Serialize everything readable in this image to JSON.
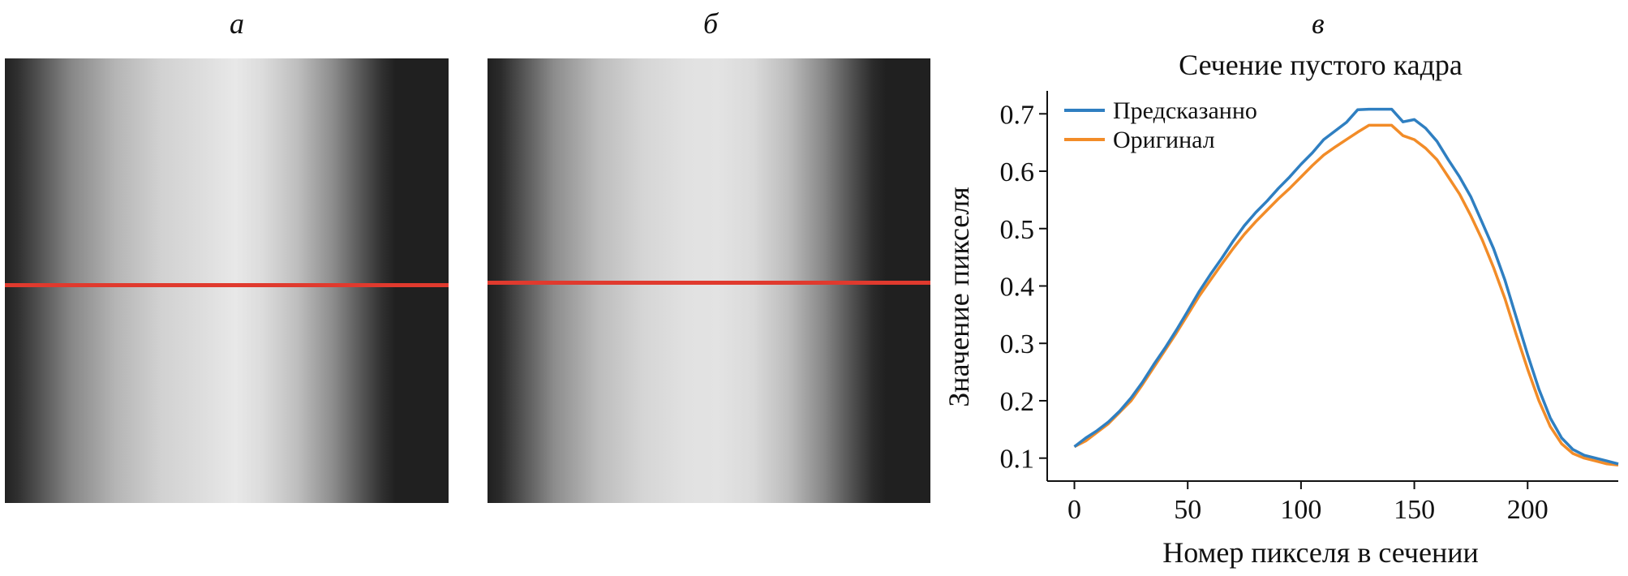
{
  "panels": {
    "a_label": "а",
    "b_label": "б",
    "c_label": "в"
  },
  "frames": {
    "line_color": "#e03a2e",
    "background": "#15171b",
    "a": {
      "profile": [
        [
          0,
          0.06
        ],
        [
          0.03,
          0.12
        ],
        [
          0.08,
          0.28
        ],
        [
          0.15,
          0.5
        ],
        [
          0.25,
          0.7
        ],
        [
          0.35,
          0.82
        ],
        [
          0.45,
          0.88
        ],
        [
          0.52,
          0.92
        ],
        [
          0.58,
          0.87
        ],
        [
          0.66,
          0.74
        ],
        [
          0.74,
          0.52
        ],
        [
          0.8,
          0.3
        ],
        [
          0.85,
          0.12
        ],
        [
          0.88,
          0.05
        ],
        [
          1,
          0.05
        ]
      ]
    },
    "b": {
      "profile": [
        [
          0,
          0.05
        ],
        [
          0.03,
          0.1
        ],
        [
          0.08,
          0.28
        ],
        [
          0.15,
          0.52
        ],
        [
          0.25,
          0.73
        ],
        [
          0.35,
          0.84
        ],
        [
          0.45,
          0.89
        ],
        [
          0.52,
          0.9
        ],
        [
          0.6,
          0.86
        ],
        [
          0.68,
          0.73
        ],
        [
          0.76,
          0.5
        ],
        [
          0.83,
          0.24
        ],
        [
          0.87,
          0.1
        ],
        [
          0.9,
          0.05
        ],
        [
          1,
          0.05
        ]
      ]
    }
  },
  "chart_data": {
    "type": "line",
    "title": "Сечение пустого кадра",
    "xlabel": "Номер пикселя в сечении",
    "ylabel": "Значение пикселя",
    "xlim": [
      -12,
      240
    ],
    "ylim": [
      0.06,
      0.74
    ],
    "xticks": [
      0,
      50,
      100,
      150,
      200
    ],
    "xtick_labels": [
      "0",
      "50",
      "100",
      "150",
      "200"
    ],
    "yticks": [
      0.1,
      0.2,
      0.3,
      0.4,
      0.5,
      0.6,
      0.7
    ],
    "ytick_labels": [
      "0.1",
      "0.2",
      "0.3",
      "0.4",
      "0.5",
      "0.6",
      "0.7"
    ],
    "legend_position": "top-left",
    "grid": false,
    "series": [
      {
        "name": "Предсказанно",
        "color": "#2f7fc1",
        "x": [
          0,
          5,
          10,
          15,
          20,
          25,
          30,
          35,
          40,
          45,
          50,
          55,
          60,
          65,
          70,
          75,
          80,
          85,
          90,
          95,
          100,
          105,
          110,
          115,
          120,
          125,
          130,
          135,
          140,
          145,
          150,
          155,
          160,
          165,
          170,
          175,
          180,
          185,
          190,
          195,
          200,
          205,
          210,
          215,
          220,
          225,
          230,
          235,
          240
        ],
        "y": [
          0.12,
          0.135,
          0.148,
          0.163,
          0.182,
          0.205,
          0.232,
          0.263,
          0.292,
          0.323,
          0.356,
          0.39,
          0.42,
          0.448,
          0.478,
          0.505,
          0.528,
          0.548,
          0.57,
          0.59,
          0.612,
          0.632,
          0.655,
          0.67,
          0.685,
          0.707,
          0.708,
          0.708,
          0.708,
          0.686,
          0.69,
          0.675,
          0.652,
          0.62,
          0.59,
          0.555,
          0.51,
          0.465,
          0.41,
          0.345,
          0.28,
          0.22,
          0.17,
          0.135,
          0.115,
          0.105,
          0.1,
          0.095,
          0.09
        ]
      },
      {
        "name": "Оригинал",
        "color": "#f28c28",
        "x": [
          0,
          5,
          10,
          15,
          20,
          25,
          30,
          35,
          40,
          45,
          50,
          55,
          60,
          65,
          70,
          75,
          80,
          85,
          90,
          95,
          100,
          105,
          110,
          115,
          120,
          125,
          130,
          135,
          140,
          145,
          150,
          155,
          160,
          165,
          170,
          175,
          180,
          185,
          190,
          195,
          200,
          205,
          210,
          215,
          220,
          225,
          230,
          235,
          240
        ],
        "y": [
          0.12,
          0.13,
          0.145,
          0.16,
          0.18,
          0.2,
          0.228,
          0.258,
          0.288,
          0.318,
          0.35,
          0.382,
          0.41,
          0.438,
          0.465,
          0.49,
          0.512,
          0.532,
          0.552,
          0.57,
          0.59,
          0.61,
          0.628,
          0.642,
          0.655,
          0.668,
          0.68,
          0.68,
          0.68,
          0.662,
          0.655,
          0.64,
          0.62,
          0.59,
          0.56,
          0.522,
          0.48,
          0.432,
          0.378,
          0.315,
          0.255,
          0.2,
          0.155,
          0.125,
          0.108,
          0.1,
          0.095,
          0.09,
          0.088
        ]
      }
    ]
  }
}
